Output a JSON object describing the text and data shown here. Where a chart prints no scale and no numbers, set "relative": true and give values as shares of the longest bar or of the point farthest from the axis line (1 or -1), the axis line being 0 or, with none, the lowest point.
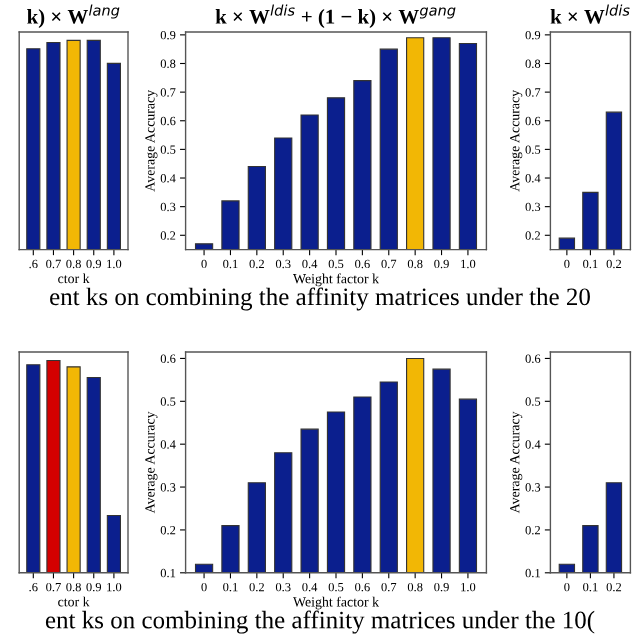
{
  "chart_data": [
    {
      "type": "bar",
      "title": "k) × W$^{lang}$",
      "xlabel": "ctor k",
      "relative": true,
      "categories": [
        ".6",
        "0.7",
        "0.8",
        "0.9",
        "1.0"
      ],
      "values": [
        0.96,
        0.99,
        1,
        1,
        0.89
      ],
      "colors": [
        "#0b1f8e",
        "#0b1f8e",
        "#f2b705",
        "#0b1f8e",
        "#0b1f8e"
      ],
      "grid": false,
      "legend": false
    },
    {
      "type": "bar",
      "title": "k × W$^{ldis}$ + (1 − k) × W$^{gang}$",
      "xlabel": "Weight factor k",
      "ylabel": "Average Accuracy",
      "categories": [
        "0",
        "0.1",
        "0.2",
        "0.3",
        "0.4",
        "0.5",
        "0.6",
        "0.7",
        "0.8",
        "0.9",
        "1.0"
      ],
      "values": [
        0.17,
        0.32,
        0.44,
        0.54,
        0.62,
        0.68,
        0.74,
        0.85,
        0.89,
        0.89,
        0.87
      ],
      "colors": [
        "#0b1f8e",
        "#0b1f8e",
        "#0b1f8e",
        "#0b1f8e",
        "#0b1f8e",
        "#0b1f8e",
        "#0b1f8e",
        "#0b1f8e",
        "#f2b705",
        "#0b1f8e",
        "#0b1f8e"
      ],
      "ylim": [
        0.15,
        0.91
      ],
      "yticks": [
        0.2,
        0.3,
        0.4,
        0.5,
        0.6,
        0.7,
        0.8,
        0.9
      ],
      "grid": false,
      "legend": false,
      "annotations": [
        "ent ks on combining the affinity matrices under the 20"
      ]
    },
    {
      "type": "bar",
      "title": "k × W$^{ldis}$",
      "ylabel": "Average Accuracy",
      "categories": [
        "0",
        "0.1",
        "0.2"
      ],
      "values": [
        0.19,
        0.35,
        0.63
      ],
      "colors": [
        "#0b1f8e",
        "#0b1f8e",
        "#0b1f8e"
      ],
      "ylim": [
        0.15,
        0.91
      ],
      "yticks": [
        0.2,
        0.3,
        0.4,
        0.5,
        0.6,
        0.7,
        0.8,
        0.9
      ],
      "grid": false,
      "legend": false
    },
    {
      "type": "bar",
      "xlabel": "ctor k",
      "relative": true,
      "categories": [
        ".6",
        "0.7",
        "0.8",
        "0.9",
        "1.0"
      ],
      "values": [
        0.98,
        1,
        0.97,
        0.92,
        0.27
      ],
      "colors": [
        "#0b1f8e",
        "#d40000",
        "#f2b705",
        "#0b1f8e",
        "#0b1f8e"
      ],
      "grid": false,
      "legend": false
    },
    {
      "type": "bar",
      "xlabel": "Weight factor k",
      "ylabel": "Average Accuracy",
      "categories": [
        "0",
        "0.1",
        "0.2",
        "0.3",
        "0.4",
        "0.5",
        "0.6",
        "0.7",
        "0.8",
        "0.9",
        "1.0"
      ],
      "values": [
        0.12,
        0.21,
        0.31,
        0.38,
        0.435,
        0.475,
        0.51,
        0.545,
        0.6,
        0.575,
        0.505
      ],
      "colors": [
        "#0b1f8e",
        "#0b1f8e",
        "#0b1f8e",
        "#0b1f8e",
        "#0b1f8e",
        "#0b1f8e",
        "#0b1f8e",
        "#0b1f8e",
        "#f2b705",
        "#0b1f8e",
        "#0b1f8e"
      ],
      "ylim": [
        0.1,
        0.615
      ],
      "yticks": [
        0.1,
        0.2,
        0.3,
        0.4,
        0.5,
        0.6
      ],
      "grid": false,
      "legend": false,
      "annotations": [
        "ent ks on combining the affinity matrices under the 10("
      ]
    },
    {
      "type": "bar",
      "ylabel": "Average Accuracy",
      "categories": [
        "0",
        "0.1",
        "0.2"
      ],
      "values": [
        0.12,
        0.21,
        0.31
      ],
      "colors": [
        "#0b1f8e",
        "#0b1f8e",
        "#0b1f8e"
      ],
      "ylim": [
        0.1,
        0.615
      ],
      "yticks": [
        0.1,
        0.2,
        0.3,
        0.4,
        0.5,
        0.6
      ],
      "grid": false,
      "legend": false
    }
  ]
}
